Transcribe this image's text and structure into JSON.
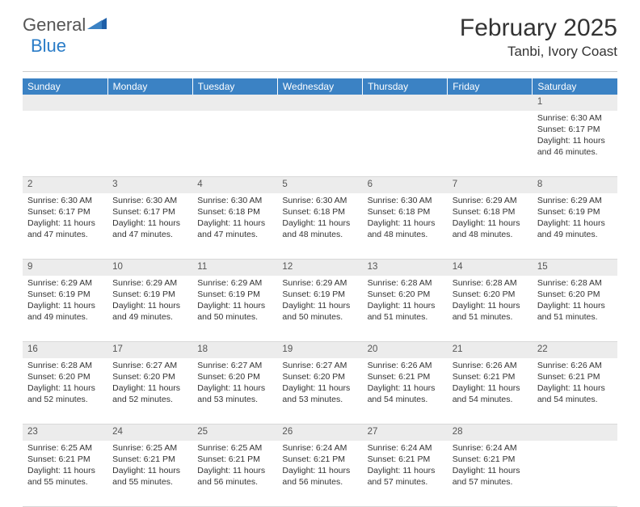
{
  "brand": {
    "general": "General",
    "blue": "Blue"
  },
  "title": "February 2025",
  "location": "Tanbi, Ivory Coast",
  "colors": {
    "header_bg": "#3b82c4",
    "header_text": "#ffffff",
    "daynum_bg": "#ececec",
    "text": "#333333",
    "logo_blue": "#2a7cc7",
    "logo_icon": "#1e5fa8"
  },
  "weekdays": [
    "Sunday",
    "Monday",
    "Tuesday",
    "Wednesday",
    "Thursday",
    "Friday",
    "Saturday"
  ],
  "first_weekday_index": 6,
  "days": [
    {
      "n": 1,
      "sr": "6:30 AM",
      "ss": "6:17 PM",
      "dl": "11 hours and 46 minutes."
    },
    {
      "n": 2,
      "sr": "6:30 AM",
      "ss": "6:17 PM",
      "dl": "11 hours and 47 minutes."
    },
    {
      "n": 3,
      "sr": "6:30 AM",
      "ss": "6:17 PM",
      "dl": "11 hours and 47 minutes."
    },
    {
      "n": 4,
      "sr": "6:30 AM",
      "ss": "6:18 PM",
      "dl": "11 hours and 47 minutes."
    },
    {
      "n": 5,
      "sr": "6:30 AM",
      "ss": "6:18 PM",
      "dl": "11 hours and 48 minutes."
    },
    {
      "n": 6,
      "sr": "6:30 AM",
      "ss": "6:18 PM",
      "dl": "11 hours and 48 minutes."
    },
    {
      "n": 7,
      "sr": "6:29 AM",
      "ss": "6:18 PM",
      "dl": "11 hours and 48 minutes."
    },
    {
      "n": 8,
      "sr": "6:29 AM",
      "ss": "6:19 PM",
      "dl": "11 hours and 49 minutes."
    },
    {
      "n": 9,
      "sr": "6:29 AM",
      "ss": "6:19 PM",
      "dl": "11 hours and 49 minutes."
    },
    {
      "n": 10,
      "sr": "6:29 AM",
      "ss": "6:19 PM",
      "dl": "11 hours and 49 minutes."
    },
    {
      "n": 11,
      "sr": "6:29 AM",
      "ss": "6:19 PM",
      "dl": "11 hours and 50 minutes."
    },
    {
      "n": 12,
      "sr": "6:29 AM",
      "ss": "6:19 PM",
      "dl": "11 hours and 50 minutes."
    },
    {
      "n": 13,
      "sr": "6:28 AM",
      "ss": "6:20 PM",
      "dl": "11 hours and 51 minutes."
    },
    {
      "n": 14,
      "sr": "6:28 AM",
      "ss": "6:20 PM",
      "dl": "11 hours and 51 minutes."
    },
    {
      "n": 15,
      "sr": "6:28 AM",
      "ss": "6:20 PM",
      "dl": "11 hours and 51 minutes."
    },
    {
      "n": 16,
      "sr": "6:28 AM",
      "ss": "6:20 PM",
      "dl": "11 hours and 52 minutes."
    },
    {
      "n": 17,
      "sr": "6:27 AM",
      "ss": "6:20 PM",
      "dl": "11 hours and 52 minutes."
    },
    {
      "n": 18,
      "sr": "6:27 AM",
      "ss": "6:20 PM",
      "dl": "11 hours and 53 minutes."
    },
    {
      "n": 19,
      "sr": "6:27 AM",
      "ss": "6:20 PM",
      "dl": "11 hours and 53 minutes."
    },
    {
      "n": 20,
      "sr": "6:26 AM",
      "ss": "6:21 PM",
      "dl": "11 hours and 54 minutes."
    },
    {
      "n": 21,
      "sr": "6:26 AM",
      "ss": "6:21 PM",
      "dl": "11 hours and 54 minutes."
    },
    {
      "n": 22,
      "sr": "6:26 AM",
      "ss": "6:21 PM",
      "dl": "11 hours and 54 minutes."
    },
    {
      "n": 23,
      "sr": "6:25 AM",
      "ss": "6:21 PM",
      "dl": "11 hours and 55 minutes."
    },
    {
      "n": 24,
      "sr": "6:25 AM",
      "ss": "6:21 PM",
      "dl": "11 hours and 55 minutes."
    },
    {
      "n": 25,
      "sr": "6:25 AM",
      "ss": "6:21 PM",
      "dl": "11 hours and 56 minutes."
    },
    {
      "n": 26,
      "sr": "6:24 AM",
      "ss": "6:21 PM",
      "dl": "11 hours and 56 minutes."
    },
    {
      "n": 27,
      "sr": "6:24 AM",
      "ss": "6:21 PM",
      "dl": "11 hours and 57 minutes."
    },
    {
      "n": 28,
      "sr": "6:24 AM",
      "ss": "6:21 PM",
      "dl": "11 hours and 57 minutes."
    }
  ],
  "labels": {
    "sunrise": "Sunrise:",
    "sunset": "Sunset:",
    "daylight": "Daylight:"
  }
}
